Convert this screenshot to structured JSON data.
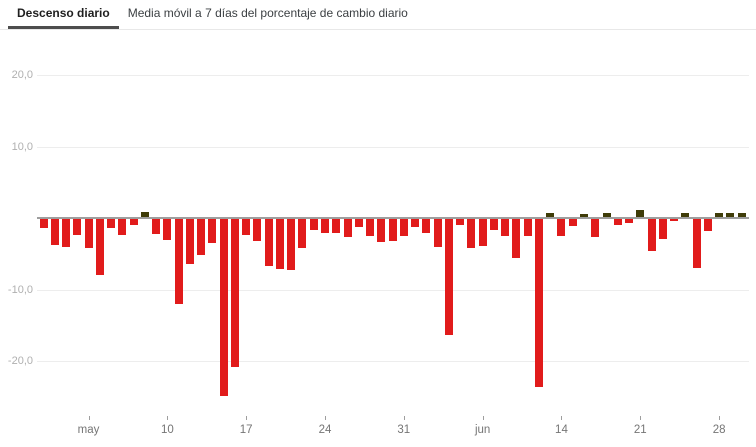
{
  "tabs": [
    {
      "label": "Descenso diario",
      "active": true
    },
    {
      "label": "Media móvil a 7 días del porcentaje de cambio diario",
      "active": false
    }
  ],
  "chart_data": {
    "type": "bar",
    "title": "Descenso diario",
    "xlabel": "",
    "ylabel": "",
    "ylim": [
      -26,
      22
    ],
    "grid": true,
    "y_axis": {
      "ticks": [
        {
          "label": "20,0",
          "value": 20
        },
        {
          "label": "10,0",
          "value": 10
        },
        {
          "label": "-10,0",
          "value": -10
        },
        {
          "label": "-20,0",
          "value": -20
        }
      ]
    },
    "x_axis": {
      "ticks": [
        {
          "label": "may",
          "index": 4
        },
        {
          "label": "10",
          "index": 11
        },
        {
          "label": "17",
          "index": 18
        },
        {
          "label": "24",
          "index": 25
        },
        {
          "label": "31",
          "index": 32
        },
        {
          "label": "jun",
          "index": 39
        },
        {
          "label": "14",
          "index": 46
        },
        {
          "label": "21",
          "index": 53
        },
        {
          "label": "28",
          "index": 60
        }
      ]
    },
    "values": [
      -1.2,
      -3.7,
      -3.9,
      -2.3,
      -4.0,
      -7.9,
      -1.3,
      -2.3,
      -0.9,
      0.75,
      -2.1,
      -3.0,
      -11.9,
      -6.3,
      -5.0,
      -3.3,
      -24.8,
      -20.7,
      -2.3,
      -3.1,
      -6.6,
      -7.0,
      -7.2,
      -4.0,
      -1.6,
      -2.0,
      -2.0,
      -2.5,
      -1.1,
      -2.4,
      -3.2,
      -3.1,
      -2.4,
      -1.1,
      -2.0,
      -3.9,
      -16.2,
      -0.9,
      -4.1,
      -3.8,
      -1.5,
      -2.4,
      -5.4,
      -2.4,
      -23.5,
      0.55,
      -2.4,
      -1.0,
      0.4,
      -2.5,
      0.55,
      -0.8,
      -0.5,
      1.0,
      -4.5,
      -2.8,
      -0.15,
      0.55,
      -6.8,
      -1.7,
      0.55,
      0.55,
      0.5
    ],
    "colors": {
      "negative": "#e11b1b",
      "positive": "#3f3c08",
      "zero_axis": "#9e9e9e",
      "gridline": "#ededed",
      "y_label": "#b0b0b0",
      "x_label": "#757575"
    },
    "legend": "none"
  }
}
